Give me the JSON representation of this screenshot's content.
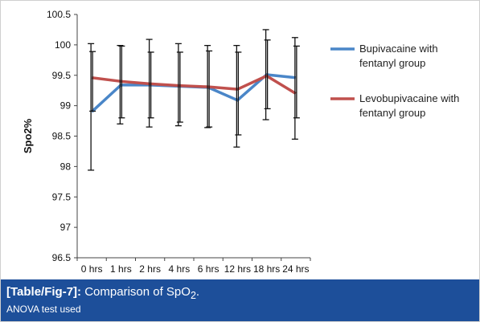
{
  "chart_data": {
    "type": "line",
    "categories": [
      "0 hrs",
      "1 hrs",
      "2 hrs",
      "4 hrs",
      "6 hrs",
      "12 hrs",
      "18 hrs",
      "24 hrs"
    ],
    "ylabel": "Spo2%",
    "xlabel": "",
    "ylim": [
      96.5,
      100.5
    ],
    "yticks": [
      "96.5",
      "97",
      "97.5",
      "98",
      "98.5",
      "99",
      "99.5",
      "100",
      "100.5"
    ],
    "grid": false,
    "legend_position": "right",
    "series": [
      {
        "name": "Bupivacaine with fentanyl group",
        "color": "#4a86c8",
        "values": [
          98.9,
          99.34,
          99.34,
          99.32,
          99.3,
          99.09,
          99.51,
          99.46
        ],
        "err_low": [
          97.94,
          98.7,
          98.65,
          98.67,
          98.64,
          98.32,
          98.77,
          98.45
        ],
        "err_high": [
          100.02,
          99.99,
          100.09,
          100.02,
          99.99,
          99.99,
          100.25,
          100.12
        ]
      },
      {
        "name": "Levobupivacaine with fentanyl group",
        "color": "#c0504d",
        "values": [
          99.46,
          99.4,
          99.36,
          99.33,
          99.31,
          99.27,
          99.49,
          99.2
        ],
        "err_low": [
          98.91,
          98.8,
          98.8,
          98.73,
          98.65,
          98.52,
          98.95,
          98.8
        ],
        "err_high": [
          99.89,
          99.98,
          99.88,
          99.88,
          99.9,
          99.88,
          100.08,
          99.98
        ]
      }
    ]
  },
  "caption": {
    "label": "[Table/Fig-7]:",
    "title_prefix": "Comparison of SpO",
    "title_sub": "2",
    "title_suffix": ".",
    "note": "ANOVA test used"
  }
}
